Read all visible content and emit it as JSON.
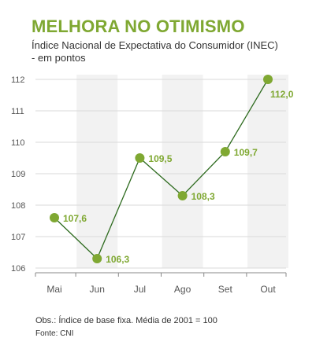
{
  "title": "MELHORA NO OTIMISMO",
  "subtitle": "Índice Nacional de Expectativa do Consumidor (INEC) - em pontos",
  "note": "Obs.: Índice de base fixa. Média de 2001 = 100",
  "source": "Fonte: CNI",
  "colors": {
    "accent": "#7fa832",
    "line": "#2e6b1f",
    "band": "#f2f2f2",
    "grid": "#d9d9d9",
    "axis_text": "#555555"
  },
  "chart_data": {
    "type": "line",
    "title": "MELHORA NO OTIMISMO",
    "subtitle": "Índice Nacional de Expectativa do Consumidor (INEC) - em pontos",
    "categories": [
      "Mai",
      "Jun",
      "Jul",
      "Ago",
      "Set",
      "Out"
    ],
    "values": [
      107.6,
      106.3,
      109.5,
      108.3,
      109.7,
      112.0
    ],
    "value_labels": [
      "107,6",
      "106,3",
      "109,5",
      "108,3",
      "109,7",
      "112,0"
    ],
    "y_ticks": [
      106,
      107,
      108,
      109,
      110,
      111,
      112
    ],
    "ylim": [
      106,
      112
    ],
    "grid": true,
    "alternating_bands": true
  }
}
